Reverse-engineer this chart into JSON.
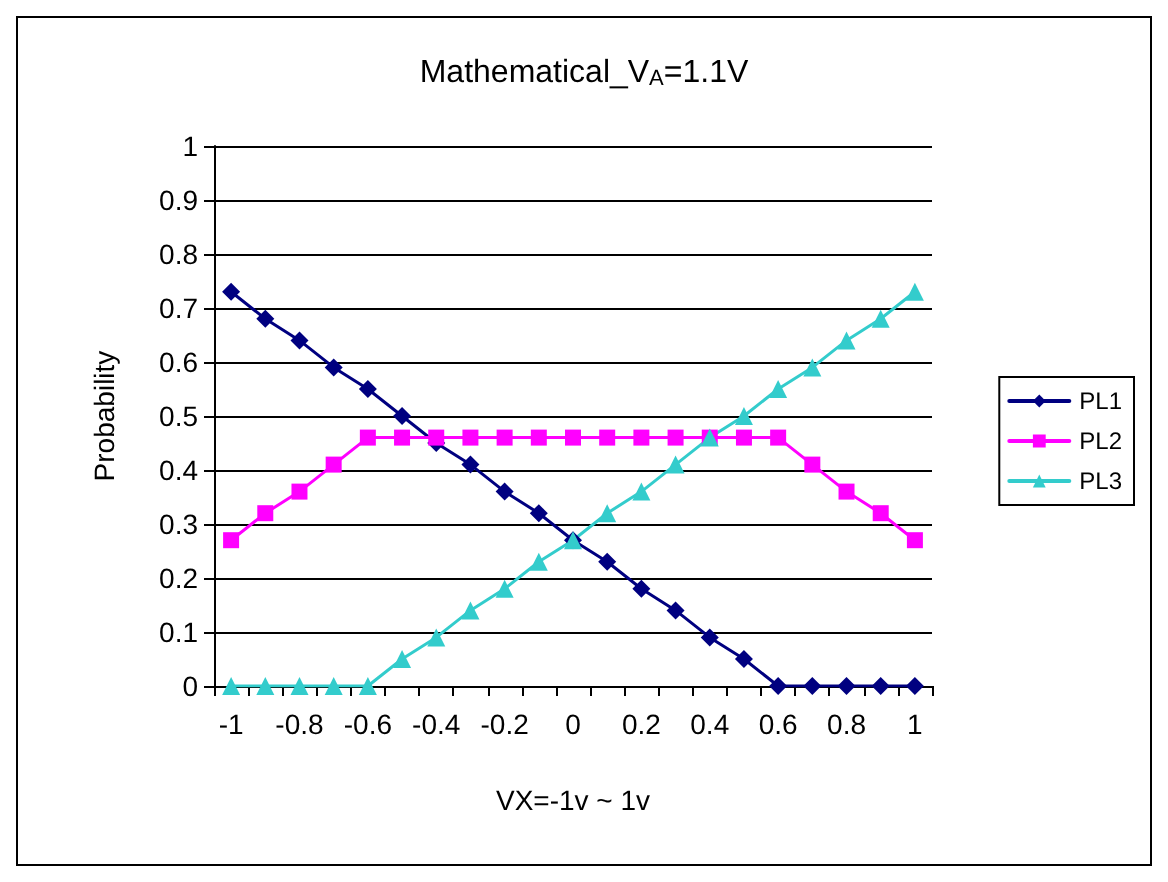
{
  "chart_data": {
    "type": "line",
    "title": "Mathematical_V$_{A}$=1.1V",
    "xlabel": "VX=-1v ~ 1v",
    "ylabel": "Probability",
    "categories": [
      "-1",
      null,
      "-0.8",
      null,
      "-0.6",
      null,
      "-0.4",
      null,
      "-0.2",
      null,
      "0",
      null,
      "0.2",
      null,
      "0.4",
      null,
      "0.6",
      null,
      "0.8",
      null,
      "1"
    ],
    "series": [
      {
        "name": "PL1",
        "color": "#000080",
        "marker": "diamond",
        "values": [
          0.73,
          0.68,
          0.64,
          0.59,
          0.55,
          0.5,
          0.45,
          0.41,
          0.36,
          0.32,
          0.27,
          0.23,
          0.18,
          0.14,
          0.09,
          0.05,
          0,
          0,
          0,
          0,
          0
        ]
      },
      {
        "name": "PL2",
        "color": "#ff00ff",
        "marker": "square",
        "values": [
          0.27,
          0.32,
          0.36,
          0.41,
          0.46,
          0.46,
          0.46,
          0.46,
          0.46,
          0.46,
          0.46,
          0.46,
          0.46,
          0.46,
          0.46,
          0.46,
          0.46,
          0.41,
          0.36,
          0.32,
          0.27
        ]
      },
      {
        "name": "PL3",
        "color": "#33cccc",
        "marker": "triangle",
        "values": [
          0,
          0,
          0,
          0,
          0,
          0.05,
          0.09,
          0.14,
          0.18,
          0.23,
          0.27,
          0.32,
          0.36,
          0.41,
          0.46,
          0.5,
          0.55,
          0.59,
          0.64,
          0.68,
          0.73
        ]
      }
    ],
    "ylim": [
      0,
      1
    ],
    "yticks": [
      0,
      0.1,
      0.2,
      0.3,
      0.4,
      0.5,
      0.6,
      0.7,
      0.8,
      0.9,
      1
    ],
    "grid": "y",
    "legend": "right",
    "line_style": "solid"
  }
}
